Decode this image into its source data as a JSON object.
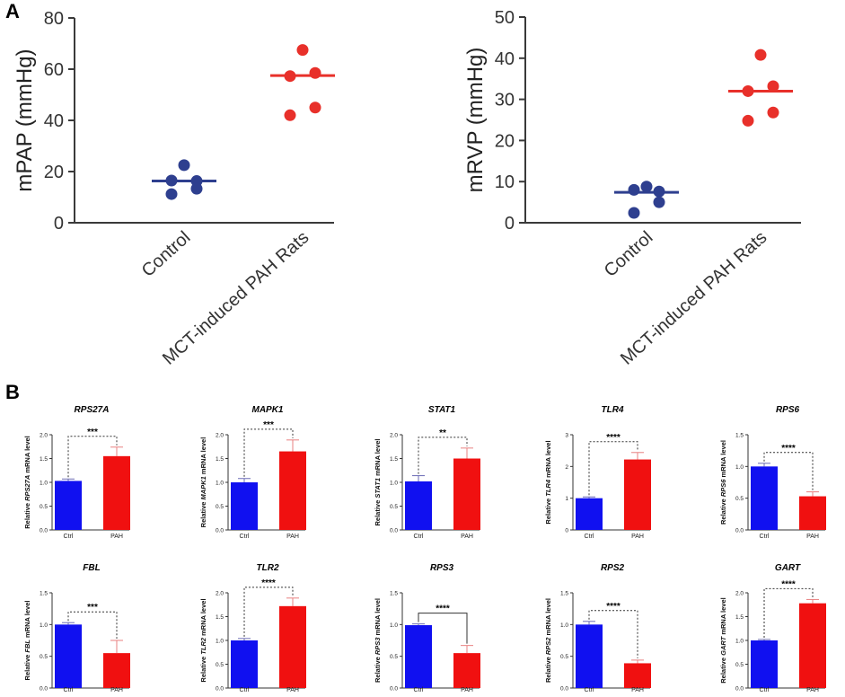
{
  "panel_labels": [
    "A",
    "B"
  ],
  "colors": {
    "control": "#2e3f8f",
    "pah": "#e8302a",
    "ctrl_bar": "#1010f0",
    "pah_bar": "#f01010",
    "axis": "#3a3a3a",
    "err_ctrl": "#6a6ab5",
    "err_pah": "#e88080"
  },
  "chart_data": [
    {
      "type": "scatter",
      "id": "mpap",
      "ylabel": "mPAP (mmHg)",
      "ylim": [
        0,
        80
      ],
      "yticks": [
        0,
        20,
        40,
        60,
        80
      ],
      "categories": [
        "Control",
        "MCT-induced PAH Rats"
      ],
      "groups": [
        {
          "name": "Control",
          "mean": 16.3,
          "points": [
            22.5,
            16.5,
            16.3,
            13.3,
            11.2
          ]
        },
        {
          "name": "MCT-induced PAH Rats",
          "mean": 57.5,
          "points": [
            67.5,
            58.5,
            57.3,
            45.0,
            42.0
          ]
        }
      ]
    },
    {
      "type": "scatter",
      "id": "mrvp",
      "ylabel": "mRVP (mmHg)",
      "ylim": [
        0,
        50
      ],
      "yticks": [
        0,
        10,
        20,
        30,
        40,
        50
      ],
      "categories": [
        "Control",
        "MCT-induced PAH Rats"
      ],
      "groups": [
        {
          "name": "Control",
          "mean": 7.4,
          "points": [
            8.8,
            8.0,
            7.6,
            5.0,
            2.4
          ]
        },
        {
          "name": "MCT-induced PAH Rats",
          "mean": 32.0,
          "points": [
            40.8,
            33.2,
            32.0,
            26.8,
            24.8
          ]
        }
      ]
    },
    {
      "type": "bar",
      "gene": "RPS27A",
      "ylabel_pre": "Relative ",
      "ylabel_post": " mRNA level",
      "categories": [
        "Ctrl",
        "PAH"
      ],
      "values": [
        1.03,
        1.55
      ],
      "errors": [
        0.04,
        0.19
      ],
      "ylim": [
        0,
        2.0
      ],
      "yticks": [
        "0.0",
        "0.5",
        "1.0",
        "1.5",
        "2.0"
      ],
      "sig": "***",
      "bracket": "dashed"
    },
    {
      "type": "bar",
      "gene": "MAPK1",
      "ylabel_pre": "Relative ",
      "ylabel_post": " mRNA level",
      "categories": [
        "Ctrl",
        "PAH"
      ],
      "values": [
        1.0,
        1.65
      ],
      "errors": [
        0.08,
        0.24
      ],
      "ylim": [
        0,
        2.0
      ],
      "yticks": [
        "0.0",
        "0.5",
        "1.0",
        "1.5",
        "2.0"
      ],
      "sig": "***",
      "bracket": "dashed"
    },
    {
      "type": "bar",
      "gene": "STAT1",
      "ylabel_pre": "Relative ",
      "ylabel_post": " mRNA level",
      "categories": [
        "Ctrl",
        "PAH"
      ],
      "values": [
        1.02,
        1.5
      ],
      "errors": [
        0.12,
        0.22
      ],
      "ylim": [
        0,
        2.0
      ],
      "yticks": [
        "0.0",
        "0.5",
        "1.0",
        "1.5",
        "2.0"
      ],
      "sig": "**",
      "bracket": "dashed"
    },
    {
      "type": "bar",
      "gene": "TLR4",
      "ylabel_pre": "Relative ",
      "ylabel_post": " mRNA level",
      "categories": [
        "Ctrl",
        "PAH"
      ],
      "values": [
        1.0,
        2.22
      ],
      "errors": [
        0.04,
        0.22
      ],
      "ylim": [
        0,
        3.0
      ],
      "yticks": [
        "0",
        "1",
        "2",
        "3"
      ],
      "sig": "****",
      "bracket": "dashed"
    },
    {
      "type": "bar",
      "gene": "RPS6",
      "ylabel_pre": "Relative ",
      "ylabel_post": " mRNA level",
      "categories": [
        "Ctrl",
        "PAH"
      ],
      "values": [
        1.0,
        0.53
      ],
      "errors": [
        0.05,
        0.07
      ],
      "ylim": [
        0,
        1.5
      ],
      "yticks": [
        "0.0",
        "0.5",
        "1.0",
        "1.5"
      ],
      "sig": "****",
      "bracket": "dashed"
    },
    {
      "type": "bar",
      "gene": "FBL",
      "ylabel_pre": "Relative ",
      "ylabel_post": " mRNA level",
      "categories": [
        "Ctrl",
        "PAH"
      ],
      "values": [
        1.0,
        0.55
      ],
      "errors": [
        0.03,
        0.2
      ],
      "ylim": [
        0,
        1.5
      ],
      "yticks": [
        "0.0",
        "0.5",
        "1.0",
        "1.5"
      ],
      "sig": "***",
      "bracket": "dashed"
    },
    {
      "type": "bar",
      "gene": "TLR2",
      "ylabel_pre": "Relative ",
      "ylabel_post": " mRNA level",
      "categories": [
        "Ctrl",
        "PAH"
      ],
      "values": [
        1.0,
        1.72
      ],
      "errors": [
        0.04,
        0.17
      ],
      "ylim": [
        0,
        2.0
      ],
      "yticks": [
        "0.0",
        "0.5",
        "1.0",
        "1.5",
        "2.0"
      ],
      "sig": "****",
      "bracket": "dashed"
    },
    {
      "type": "bar",
      "gene": "RPS3",
      "ylabel_pre": "Relative ",
      "ylabel_post": " mRNA level",
      "categories": [
        "Ctrl",
        "PAH"
      ],
      "values": [
        0.99,
        0.55
      ],
      "errors": [
        0.02,
        0.12
      ],
      "ylim": [
        0,
        1.5
      ],
      "yticks": [
        "0.0",
        "0.5",
        "1.0",
        "1.5"
      ],
      "sig": "****",
      "bracket": "solid"
    },
    {
      "type": "bar",
      "gene": "RPS2",
      "ylabel_pre": "Relative ",
      "ylabel_post": " mRNA level",
      "categories": [
        "Ctrl",
        "PAH"
      ],
      "values": [
        1.0,
        0.39
      ],
      "errors": [
        0.05,
        0.05
      ],
      "ylim": [
        0,
        1.5
      ],
      "yticks": [
        "0.0",
        "0.5",
        "1.0",
        "1.5"
      ],
      "sig": "****",
      "bracket": "dashed"
    },
    {
      "type": "bar",
      "gene": "GART",
      "ylabel_pre": "Relative ",
      "ylabel_post": " mRNA level",
      "categories": [
        "Ctrl",
        "PAH"
      ],
      "values": [
        1.0,
        1.78
      ],
      "errors": [
        0.02,
        0.08
      ],
      "ylim": [
        0,
        2.0
      ],
      "yticks": [
        "0.0",
        "0.5",
        "1.0",
        "1.5",
        "2.0"
      ],
      "sig": "****",
      "bracket": "dashed"
    }
  ]
}
